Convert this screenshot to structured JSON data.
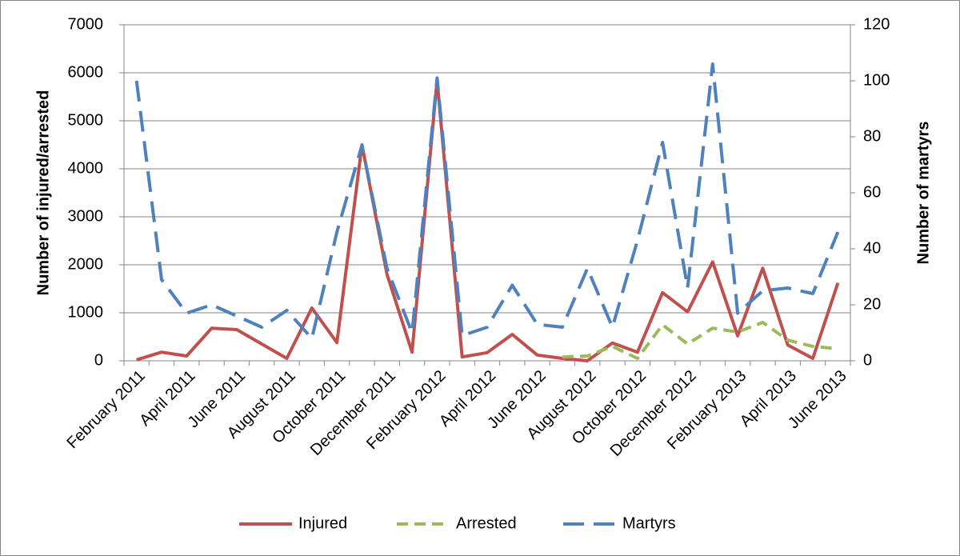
{
  "chart_data": {
    "type": "line",
    "y_label": "Number of injured/arrested",
    "y2_label": "Number of martyrs",
    "categories": [
      "February 2011",
      null,
      "April 2011",
      null,
      "June 2011",
      null,
      "August 2011",
      null,
      "October 2011",
      null,
      "December 2011",
      null,
      "February 2012",
      null,
      "April 2012",
      null,
      "June 2012",
      null,
      "August 2012",
      null,
      "October 2012",
      null,
      "December 2012",
      null,
      "February 2013",
      null,
      "April 2013",
      null,
      "June 2013"
    ],
    "series": [
      {
        "name": "Injured",
        "color": "#c0504d",
        "line_style": "solid",
        "axis": "y",
        "values": [
          20,
          180,
          100,
          680,
          650,
          350,
          50,
          1100,
          380,
          4500,
          1800,
          180,
          5850,
          80,
          170,
          550,
          120,
          50,
          0,
          370,
          180,
          1420,
          1020,
          2060,
          520,
          1930,
          330,
          50,
          1620
        ]
      },
      {
        "name": "Arrested",
        "color": "#9bbb59",
        "line_style": "short-dashed",
        "axis": "y",
        "values": [
          null,
          null,
          null,
          null,
          null,
          null,
          null,
          null,
          null,
          null,
          null,
          null,
          null,
          null,
          null,
          null,
          null,
          80,
          100,
          300,
          50,
          750,
          350,
          680,
          600,
          800,
          430,
          300,
          250
        ]
      },
      {
        "name": "Martyrs",
        "color": "#4f81bd",
        "line_style": "long-dashed",
        "axis": "y2",
        "values": [
          100,
          29,
          17,
          20,
          16,
          12,
          18,
          8,
          46,
          77,
          33,
          10,
          101,
          9,
          12,
          27,
          13,
          12,
          33,
          12,
          43,
          78,
          26,
          106,
          17,
          25,
          26,
          24,
          46
        ]
      }
    ],
    "ylim": [
      0,
      7000
    ],
    "yticks": [
      0,
      1000,
      2000,
      3000,
      4000,
      5000,
      6000,
      7000
    ],
    "y2lim": [
      0,
      120
    ],
    "y2ticks": [
      0,
      20,
      40,
      60,
      80,
      100,
      120
    ],
    "grid": true,
    "legend": "bottom"
  }
}
